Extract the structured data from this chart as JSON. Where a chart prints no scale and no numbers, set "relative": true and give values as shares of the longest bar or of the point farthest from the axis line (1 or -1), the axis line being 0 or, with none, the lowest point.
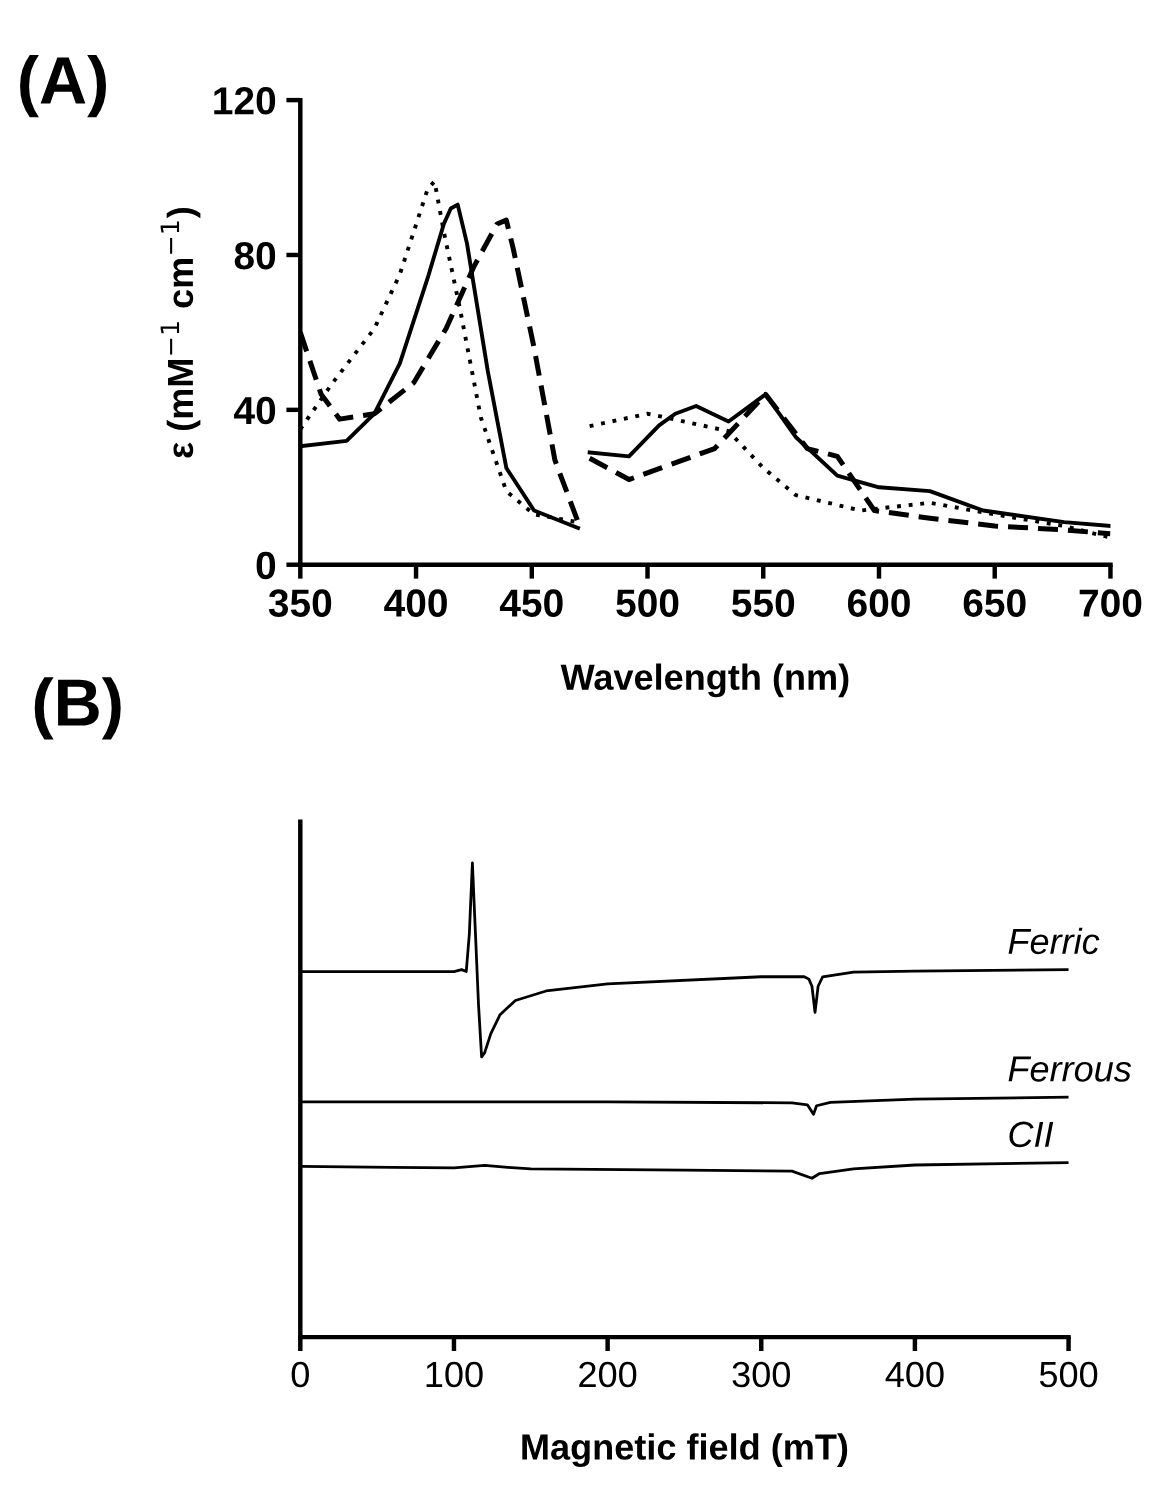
{
  "chart_data": [
    {
      "type": "line",
      "title": "(A)",
      "xlabel": "Wavelength (nm)",
      "ylabel": "ε (mM$^{−1}$ cm$^{−1}$)",
      "xlim": [
        350,
        700
      ],
      "xticks": [
        350,
        400,
        450,
        500,
        550,
        600,
        650,
        700
      ],
      "ylim": [
        0,
        120
      ],
      "yticks": [
        0,
        40,
        80,
        120
      ],
      "grid": false,
      "legend": false,
      "marker": "none",
      "series": [
        {
          "color": "#000000",
          "line_style": "solid",
          "x": [
            350,
            370,
            382,
            393,
            405,
            412,
            415,
            418,
            422,
            431,
            439,
            451,
            470,
            472,
            475,
            492,
            505,
            512,
            521,
            535,
            551,
            564,
            582,
            600,
            622,
            645,
            680,
            700
          ],
          "values": [
            30.6,
            32,
            39,
            52,
            74,
            88,
            92,
            93,
            83,
            50,
            25,
            14,
            9.5,
            null,
            29,
            28,
            36,
            39,
            41,
            37,
            44,
            33,
            23,
            20,
            19,
            14,
            11,
            10
          ]
        },
        {
          "color": "#000000",
          "line_style": "dashed",
          "x": [
            350,
            359,
            367,
            382,
            399,
            413,
            425,
            435,
            439,
            442,
            451,
            460,
            470,
            472,
            475,
            492,
            505,
            529,
            551,
            569,
            582,
            598,
            622,
            650,
            680,
            700
          ],
          "values": [
            60,
            44,
            37.6,
            39,
            47,
            61,
            77,
            88,
            89,
            81.6,
            56,
            27,
            11,
            null,
            27.5,
            22,
            24.8,
            30,
            44,
            30,
            28,
            14,
            12,
            10,
            9,
            8
          ]
        },
        {
          "color": "#000000",
          "line_style": "dotted",
          "x": [
            350,
            364,
            382,
            393,
            405,
            408,
            412,
            419,
            428,
            439,
            451,
            470,
            472,
            475,
            500,
            505,
            535,
            550,
            564,
            592,
            622,
            650,
            680,
            700
          ],
          "values": [
            35,
            47,
            61,
            75,
            97,
            99,
            86,
            66,
            38,
            19,
            13,
            11,
            null,
            35.8,
            39,
            38.4,
            34.5,
            25,
            18,
            14,
            16,
            13,
            10,
            7
          ]
        }
      ]
    },
    {
      "type": "line",
      "title": "(B)",
      "xlabel": "Magnetic field (mT)",
      "xlim": [
        0,
        500
      ],
      "xticks": [
        0,
        100,
        200,
        300,
        400,
        500
      ],
      "relative": true,
      "tick_labels": "x",
      "grid": false,
      "legend": false,
      "marker": "none",
      "series": [
        {
          "name": "Ferric",
          "color": "#000000",
          "line_style": "solid",
          "x": [
            0,
            100,
            105,
            108,
            110,
            112,
            114,
            116,
            118,
            120,
            124,
            130,
            140,
            160,
            200,
            300,
            328,
            331,
            333,
            335,
            337,
            340,
            360,
            400,
            500
          ],
          "values": [
            0.771,
            0.771,
            0.775,
            0.771,
            0.85,
            1.0,
            0.85,
            0.7,
            0.591,
            0.6,
            0.64,
            0.68,
            0.71,
            0.73,
            0.745,
            0.76,
            0.76,
            0.755,
            0.74,
            0.685,
            0.74,
            0.76,
            0.77,
            0.772,
            0.775
          ]
        },
        {
          "name": "Ferrous",
          "color": "#000000",
          "line_style": "solid",
          "x": [
            0,
            200,
            320,
            330,
            334,
            336,
            345,
            400,
            500
          ],
          "values": [
            0.496,
            0.496,
            0.494,
            0.49,
            0.47,
            0.488,
            0.495,
            0.502,
            0.506
          ]
        },
        {
          "name": "CII",
          "color": "#000000",
          "line_style": "solid",
          "x": [
            0,
            60,
            100,
            120,
            135,
            150,
            250,
            320,
            333,
            338,
            360,
            400,
            500
          ],
          "values": [
            0.36,
            0.358,
            0.357,
            0.362,
            0.358,
            0.355,
            0.352,
            0.35,
            0.335,
            0.345,
            0.355,
            0.363,
            0.368
          ]
        }
      ]
    }
  ]
}
